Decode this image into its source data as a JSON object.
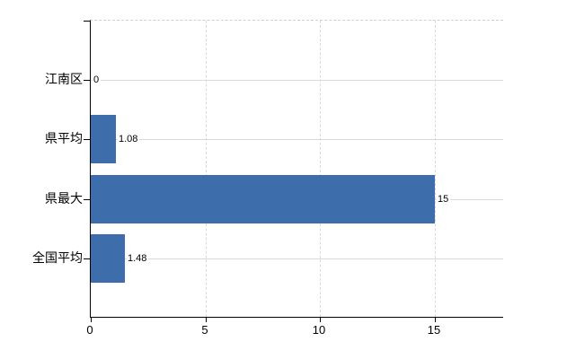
{
  "chart_data": {
    "type": "bar",
    "orientation": "horizontal",
    "title": "",
    "categories": [
      "江南区",
      "県平均",
      "県最大",
      "全国平均"
    ],
    "values": [
      0,
      1.08,
      15,
      1.48
    ],
    "value_labels": [
      "0",
      "1.08",
      "15",
      "1.48"
    ],
    "x_ticks": [
      0,
      5,
      10,
      15
    ],
    "x_tick_labels": [
      "0",
      "5",
      "10",
      "15"
    ],
    "xlim": [
      0,
      18
    ],
    "xlabel": "",
    "ylabel": "",
    "grid": true,
    "legend": false,
    "bar_color": "#3d6dab",
    "axis_color": "#000000",
    "solid_grid_color": "#d6dcd6",
    "dashed_grid_color": "#d9d9d9",
    "text_color": "#000000"
  }
}
